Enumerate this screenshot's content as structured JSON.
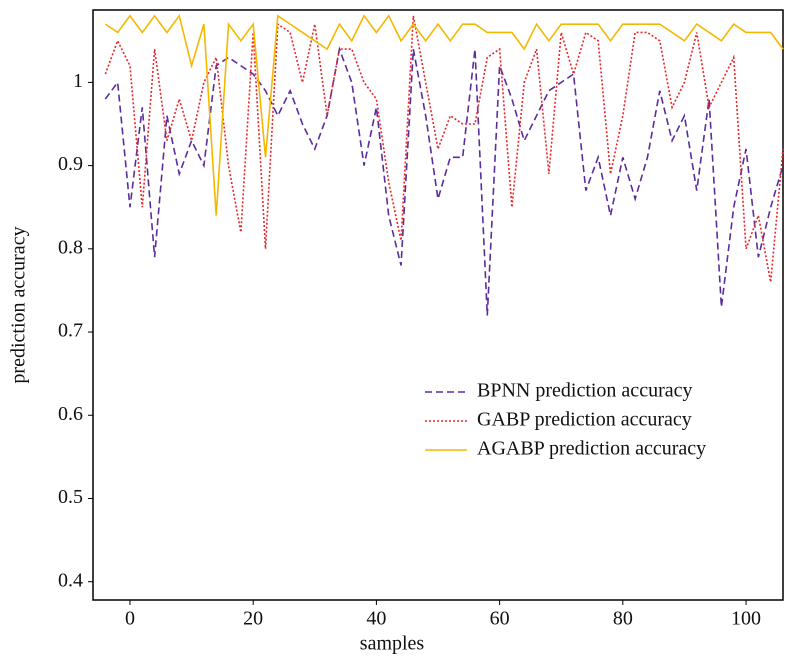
{
  "chart_data": {
    "type": "line",
    "xlabel": "samples",
    "ylabel": "prediction accuracy",
    "x": [
      -4,
      -2,
      0,
      2,
      4,
      6,
      8,
      10,
      12,
      14,
      16,
      18,
      20,
      22,
      24,
      26,
      28,
      30,
      32,
      34,
      36,
      38,
      40,
      42,
      44,
      46,
      48,
      50,
      52,
      54,
      56,
      58,
      60,
      62,
      64,
      66,
      68,
      70,
      72,
      74,
      76,
      78,
      80,
      82,
      84,
      86,
      88,
      90,
      92,
      94,
      96,
      98,
      100,
      102,
      104,
      106
    ],
    "series": [
      {
        "name": "BPNN prediction accuracy",
        "color": "#5b2c9e",
        "dash": "dashed",
        "values": [
          0.98,
          1.0,
          0.85,
          0.97,
          0.79,
          0.96,
          0.89,
          0.93,
          0.9,
          1.02,
          1.03,
          1.02,
          1.01,
          0.99,
          0.96,
          0.99,
          0.95,
          0.92,
          0.96,
          1.04,
          1.0,
          0.9,
          0.97,
          0.84,
          0.78,
          1.04,
          0.96,
          0.86,
          0.91,
          0.91,
          1.04,
          0.72,
          1.02,
          0.98,
          0.93,
          0.96,
          0.99,
          1.0,
          1.01,
          0.87,
          0.91,
          0.84,
          0.91,
          0.86,
          0.91,
          0.99,
          0.93,
          0.96,
          0.87,
          0.98,
          0.73,
          0.85,
          0.92,
          0.79,
          0.85,
          0.9
        ]
      },
      {
        "name": "GABP prediction accuracy",
        "color": "#e8272a",
        "dash": "dotted",
        "values": [
          1.01,
          1.05,
          1.02,
          0.85,
          1.04,
          0.93,
          0.98,
          0.93,
          1.0,
          1.03,
          0.9,
          0.82,
          1.06,
          0.8,
          1.07,
          1.06,
          1.0,
          1.07,
          0.96,
          1.04,
          1.04,
          1.0,
          0.98,
          0.88,
          0.81,
          1.08,
          1.0,
          0.92,
          0.96,
          0.95,
          0.95,
          1.03,
          1.04,
          0.85,
          1.0,
          1.04,
          0.89,
          1.06,
          1.01,
          1.06,
          1.05,
          0.89,
          0.96,
          1.06,
          1.06,
          1.05,
          0.97,
          1.0,
          1.06,
          0.97,
          1.0,
          1.03,
          0.8,
          0.84,
          0.76,
          0.92
        ]
      },
      {
        "name": "AGABP prediction accuracy",
        "color": "#f5b800",
        "dash": "solid",
        "values": [
          1.07,
          1.06,
          1.08,
          1.06,
          1.08,
          1.06,
          1.08,
          1.02,
          1.07,
          0.84,
          1.07,
          1.05,
          1.07,
          0.91,
          1.08,
          1.07,
          1.06,
          1.05,
          1.04,
          1.07,
          1.05,
          1.08,
          1.06,
          1.08,
          1.05,
          1.07,
          1.05,
          1.07,
          1.05,
          1.07,
          1.07,
          1.06,
          1.06,
          1.06,
          1.04,
          1.07,
          1.05,
          1.07,
          1.07,
          1.07,
          1.07,
          1.05,
          1.07,
          1.07,
          1.07,
          1.07,
          1.06,
          1.05,
          1.07,
          1.06,
          1.05,
          1.07,
          1.06,
          1.06,
          1.06,
          1.04
        ]
      }
    ],
    "xlim": [
      -6,
      106
    ],
    "xticks": [
      0,
      20,
      40,
      60,
      80,
      100
    ],
    "ylim": [
      0.378,
      1.087
    ],
    "yticks": [
      0.4,
      0.5,
      0.6,
      0.7,
      0.8,
      0.9,
      1
    ],
    "grid": false,
    "legend_loc": "right"
  }
}
